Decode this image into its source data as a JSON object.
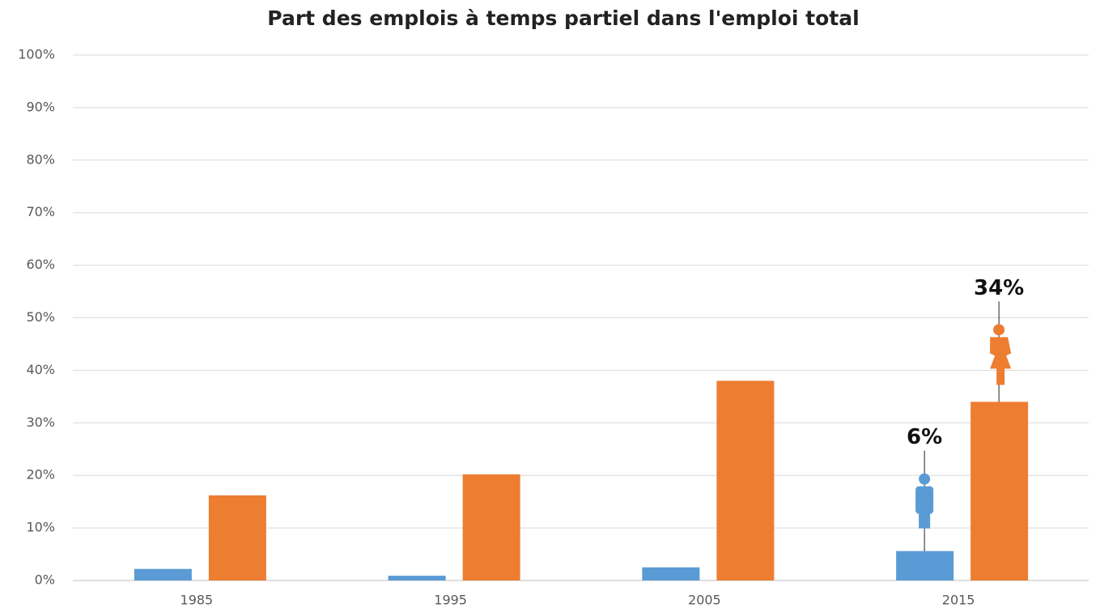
{
  "chart_data": {
    "type": "bar",
    "title": "Part des emplois à temps partiel dans l'emploi total",
    "categories": [
      "1985",
      "1995",
      "2005",
      "2015"
    ],
    "series": [
      {
        "color": "#5b9bd5",
        "values": [
          2.2,
          0.9,
          2.5,
          5.6
        ],
        "value_labels": [
          null,
          null,
          null,
          "6%"
        ]
      },
      {
        "color": "#ed7d31",
        "values": [
          16.2,
          20.2,
          38.0,
          34.0
        ],
        "value_labels": [
          null,
          null,
          null,
          "34%"
        ]
      }
    ],
    "ylim": [
      0,
      100
    ],
    "yticks": [
      {
        "value": 0,
        "label": "0%"
      },
      {
        "value": 10,
        "label": "10%"
      },
      {
        "value": 20,
        "label": "20%"
      },
      {
        "value": 30,
        "label": "30%"
      },
      {
        "value": 40,
        "label": "40%"
      },
      {
        "value": 50,
        "label": "50%"
      },
      {
        "value": 60,
        "label": "60%"
      },
      {
        "value": 70,
        "label": "70%"
      },
      {
        "value": 80,
        "label": "80%"
      },
      {
        "value": 90,
        "label": "90%"
      },
      {
        "value": 100,
        "label": "100%"
      }
    ],
    "grid": true
  }
}
